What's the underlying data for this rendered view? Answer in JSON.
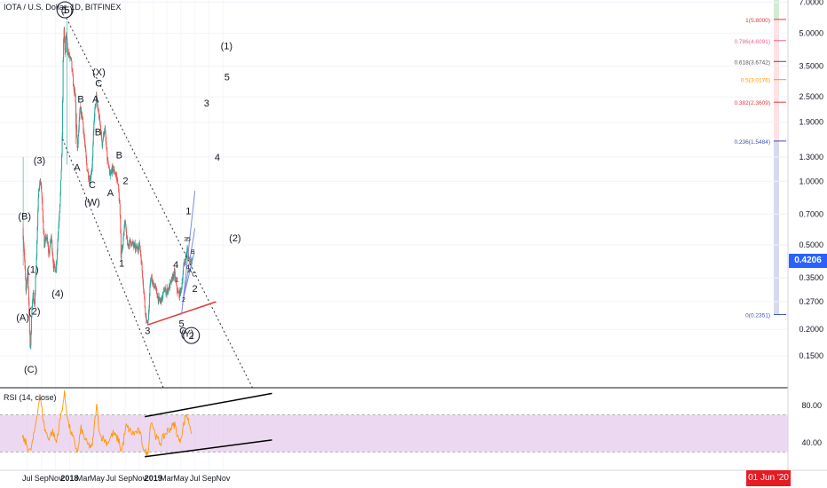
{
  "header": {
    "title": "IOTA / U.S. Dollar, 1D, BITFINEX",
    "indicator_label": "RSI (14, close)",
    "current_price": "0.4206",
    "current_date": "01 Jun '20"
  },
  "colors": {
    "up_candle": "#26a69a",
    "down_candle": "#ef5350",
    "rsi_line": "#ff9800",
    "rsi_band": "#e1bee7",
    "price_badge": "#2962ff",
    "date_badge": "#e51c23",
    "support_line": "#e53935",
    "channel_line": "#333333",
    "fork_line": "#7e8ce0"
  },
  "chart_data": [
    {
      "type": "candlestick",
      "title": "IOTA / U.S. Dollar, 1D, BITFINEX",
      "xlabel": "",
      "ylabel": "",
      "y_scale": "log",
      "ylim": [
        0.12,
        7.0
      ],
      "x_tick_labels": [
        "Jul",
        "Sep",
        "Nov",
        "2018",
        "Mar",
        "May",
        "Jul",
        "Sep",
        "Nov",
        "2019",
        "Mar",
        "May",
        "Jul",
        "Sep",
        "Nov"
      ],
      "y_tick_labels": [
        "7.0000",
        "5.0000",
        "3.5000",
        "2.5000",
        "1.9000",
        "1.3000",
        "1.0000",
        "0.7000",
        "0.5000",
        "0.3500",
        "0.2700",
        "0.2000",
        "0.1500"
      ],
      "y_tick_values": [
        7.0,
        5.0,
        3.5,
        2.5,
        1.9,
        1.3,
        1.0,
        0.7,
        0.5,
        0.35,
        0.27,
        0.2,
        0.15
      ],
      "price_path": [
        [
          "2017-06-13",
          0.6
        ],
        [
          "2017-06-20",
          0.45
        ],
        [
          "2017-06-27",
          0.3
        ],
        [
          "2017-07-05",
          0.37
        ],
        [
          "2017-07-12",
          0.22
        ],
        [
          "2017-07-16",
          0.15
        ],
        [
          "2017-07-22",
          0.25
        ],
        [
          "2017-07-28",
          0.3
        ],
        [
          "2017-08-03",
          0.25
        ],
        [
          "2017-08-12",
          0.45
        ],
        [
          "2017-08-22",
          0.95
        ],
        [
          "2017-08-31",
          1.0
        ],
        [
          "2017-09-08",
          0.7
        ],
        [
          "2017-09-15",
          0.5
        ],
        [
          "2017-09-25",
          0.55
        ],
        [
          "2017-10-05",
          0.45
        ],
        [
          "2017-10-15",
          0.55
        ],
        [
          "2017-10-25",
          0.4
        ],
        [
          "2017-11-05",
          0.38
        ],
        [
          "2017-11-15",
          0.6
        ],
        [
          "2017-11-25",
          0.9
        ],
        [
          "2017-12-02",
          1.6
        ],
        [
          "2017-12-07",
          4.5
        ],
        [
          "2017-12-10",
          5.2
        ],
        [
          "2017-12-15",
          3.8
        ],
        [
          "2017-12-19",
          5.0
        ],
        [
          "2017-12-28",
          4.0
        ],
        [
          "2018-01-10",
          3.7
        ],
        [
          "2018-01-20",
          2.8
        ],
        [
          "2018-01-28",
          2.5
        ],
        [
          "2018-02-06",
          1.4
        ],
        [
          "2018-02-18",
          2.2
        ],
        [
          "2018-02-28",
          2.0
        ],
        [
          "2018-03-10",
          1.5
        ],
        [
          "2018-03-20",
          1.15
        ],
        [
          "2018-04-01",
          1.0
        ],
        [
          "2018-04-12",
          1.2
        ],
        [
          "2018-04-20",
          2.0
        ],
        [
          "2018-04-29",
          2.5
        ],
        [
          "2018-05-06",
          2.2
        ],
        [
          "2018-05-15",
          1.9
        ],
        [
          "2018-05-25",
          1.5
        ],
        [
          "2018-06-05",
          1.8
        ],
        [
          "2018-06-15",
          1.3
        ],
        [
          "2018-06-28",
          1.05
        ],
        [
          "2018-07-08",
          1.15
        ],
        [
          "2018-07-20",
          1.1
        ],
        [
          "2018-08-01",
          1.0
        ],
        [
          "2018-08-10",
          0.75
        ],
        [
          "2018-08-15",
          0.45
        ],
        [
          "2018-08-22",
          0.5
        ],
        [
          "2018-09-01",
          0.65
        ],
        [
          "2018-09-12",
          0.5
        ],
        [
          "2018-09-25",
          0.52
        ],
        [
          "2018-10-08",
          0.5
        ],
        [
          "2018-10-20",
          0.48
        ],
        [
          "2018-11-05",
          0.5
        ],
        [
          "2018-11-18",
          0.35
        ],
        [
          "2018-11-28",
          0.25
        ],
        [
          "2018-12-07",
          0.21
        ],
        [
          "2018-12-14",
          0.24
        ],
        [
          "2018-12-22",
          0.36
        ],
        [
          "2018-12-30",
          0.33
        ],
        [
          "2019-01-10",
          0.32
        ],
        [
          "2019-01-20",
          0.29
        ],
        [
          "2019-01-30",
          0.27
        ],
        [
          "2019-02-10",
          0.28
        ],
        [
          "2019-02-20",
          0.31
        ],
        [
          "2019-03-01",
          0.3
        ],
        [
          "2019-03-15",
          0.32
        ],
        [
          "2019-03-28",
          0.35
        ],
        [
          "2019-04-05",
          0.37
        ],
        [
          "2019-04-15",
          0.31
        ],
        [
          "2019-04-25",
          0.29
        ],
        [
          "2019-05-05",
          0.31
        ],
        [
          "2019-05-15",
          0.4
        ],
        [
          "2019-05-25",
          0.44
        ],
        [
          "2019-05-31",
          0.48
        ],
        [
          "2019-06-05",
          0.44
        ],
        [
          "2019-06-10",
          0.43
        ],
        [
          "2019-06-20",
          0.42
        ]
      ],
      "annotations": [
        {
          "text": "(A)",
          "x": "2017-06-11",
          "y": 0.22
        },
        {
          "text": "(B)",
          "x": "2017-06-19",
          "y": 0.66
        },
        {
          "text": "(C)",
          "x": "2017-07-16",
          "y": 0.125
        },
        {
          "text": "(1)",
          "x": "2017-07-25",
          "y": 0.37
        },
        {
          "text": "(2)",
          "x": "2017-08-01",
          "y": 0.235
        },
        {
          "text": "(3)",
          "x": "2017-08-23",
          "y": 1.21
        },
        {
          "text": "(4)",
          "x": "2017-11-10",
          "y": 0.285
        },
        {
          "text": "(5)",
          "x": "2017-12-21",
          "y": 6.2
        },
        {
          "text": "1",
          "x": "2017-12-12",
          "y": 6.2,
          "circled": true
        },
        {
          "text": "A",
          "x": "2018-02-03",
          "y": 1.12
        },
        {
          "text": "B",
          "x": "2018-02-19",
          "y": 2.35
        },
        {
          "text": "C",
          "x": "2018-04-10",
          "y": 0.93
        },
        {
          "text": "(W)",
          "x": "2018-04-10",
          "y": 0.77
        },
        {
          "text": "A",
          "x": "2018-04-25",
          "y": 2.35
        },
        {
          "text": "B",
          "x": "2018-05-05",
          "y": 1.65
        },
        {
          "text": "C",
          "x": "2018-05-08",
          "y": 2.8
        },
        {
          "text": "(X)",
          "x": "2018-05-09",
          "y": 3.15
        },
        {
          "text": "A",
          "x": "2018-06-28",
          "y": 0.85
        },
        {
          "text": "B",
          "x": "2018-08-05",
          "y": 1.28
        },
        {
          "text": "2",
          "x": "2018-09-02",
          "y": 0.97
        },
        {
          "text": "1",
          "x": "2018-08-16",
          "y": 0.395
        },
        {
          "text": "3",
          "x": "2018-12-07",
          "y": 0.19
        },
        {
          "text": "4",
          "x": "2019-04-09",
          "y": 0.39
        },
        {
          "text": "1",
          "x": "2019-04-15",
          "y": 0.335,
          "small": true
        },
        {
          "text": "2",
          "x": "2019-05-13",
          "y": 0.27,
          "small": true
        },
        {
          "text": "3",
          "x": "2019-05-22",
          "y": 0.52,
          "small": true
        },
        {
          "text": "4",
          "x": "2019-05-31",
          "y": 0.385,
          "small": true
        },
        {
          "text": "5",
          "x": "2019-06-05",
          "y": 0.52,
          "small": true
        },
        {
          "text": "A",
          "x": "2019-06-09",
          "y": 0.37,
          "small": true
        },
        {
          "text": "B",
          "x": "2019-06-22",
          "y": 0.455,
          "small": true
        },
        {
          "text": "C",
          "x": "2019-06-28",
          "y": 0.355,
          "small": true
        },
        {
          "text": "1",
          "x": "2019-06-03",
          "y": 0.7
        },
        {
          "text": "2",
          "x": "2019-07-01",
          "y": 0.3
        },
        {
          "text": "5",
          "x": "2019-05-04",
          "y": 0.205
        },
        {
          "text": "C",
          "x": "2019-05-10",
          "y": 0.19
        },
        {
          "text": "(Y)",
          "x": "2019-05-29",
          "y": 0.185
        },
        {
          "text": "2",
          "x": "2019-06-16",
          "y": 0.18,
          "circled": true
        },
        {
          "text": "3",
          "x": "2019-08-21",
          "y": 2.25
        },
        {
          "text": "4",
          "x": "2019-10-07",
          "y": 1.25
        },
        {
          "text": "5",
          "x": "2019-11-18",
          "y": 3.0
        },
        {
          "text": "(1)",
          "x": "2019-11-16",
          "y": 4.2
        },
        {
          "text": "(2)",
          "x": "2019-12-23",
          "y": 0.52
        }
      ],
      "fibonacci": [
        {
          "label": "1(5.8000)",
          "value": 5.8
        },
        {
          "label": "0.786(4.6091)",
          "value": 4.6091
        },
        {
          "label": "0.618(3.6742)",
          "value": 3.6742
        },
        {
          "label": "0.5(3.0176)",
          "value": 3.0176
        },
        {
          "label": "0.382(2.3609)",
          "value": 2.3609
        },
        {
          "label": "0.236(1.5484)",
          "value": 1.5484
        },
        {
          "label": "0(0.2351)",
          "value": 0.2351
        }
      ],
      "trendlines": [
        {
          "name": "channel-upper",
          "from": [
            "2017-12-18",
            5.9
          ],
          "to": [
            "2020-03-10",
            0.105
          ],
          "style": "dotted"
        },
        {
          "name": "channel-lower",
          "from": [
            "2017-12-02",
            1.58
          ],
          "to": [
            "2019-02-15",
            0.105
          ],
          "style": "dotted"
        },
        {
          "name": "support",
          "from": [
            "2018-12-07",
            0.21
          ],
          "to": [
            "2019-10-01",
            0.27
          ],
          "style": "solid"
        },
        {
          "name": "fork-1",
          "from": [
            "2019-05-04",
            0.235
          ],
          "to": [
            "2019-07-01",
            0.9
          ],
          "style": "solid"
        },
        {
          "name": "fork-2",
          "from": [
            "2019-05-08",
            0.26
          ],
          "to": [
            "2019-07-01",
            0.6
          ],
          "style": "solid"
        },
        {
          "name": "fork-3",
          "from": [
            "2019-05-12",
            0.28
          ],
          "to": [
            "2019-06-28",
            0.46
          ],
          "style": "solid"
        }
      ]
    },
    {
      "type": "line",
      "title": "RSI (14, close)",
      "ylim": [
        20,
        100
      ],
      "y_tick_labels": [
        "80.00",
        "40.00"
      ],
      "band": [
        30,
        70
      ],
      "rsi_path": [
        [
          "2017-06-10",
          45
        ],
        [
          "2017-06-25",
          40
        ],
        [
          "2017-07-15",
          30
        ],
        [
          "2017-08-01",
          50
        ],
        [
          "2017-08-15",
          75
        ],
        [
          "2017-08-25",
          90
        ],
        [
          "2017-09-15",
          55
        ],
        [
          "2017-10-01",
          45
        ],
        [
          "2017-10-20",
          52
        ],
        [
          "2017-11-05",
          40
        ],
        [
          "2017-11-25",
          70
        ],
        [
          "2017-12-10",
          92
        ],
        [
          "2017-12-28",
          60
        ],
        [
          "2018-01-20",
          42
        ],
        [
          "2018-02-06",
          30
        ],
        [
          "2018-02-20",
          55
        ],
        [
          "2018-03-20",
          38
        ],
        [
          "2018-04-10",
          35
        ],
        [
          "2018-04-29",
          80
        ],
        [
          "2018-05-15",
          48
        ],
        [
          "2018-06-15",
          40
        ],
        [
          "2018-07-10",
          50
        ],
        [
          "2018-08-05",
          42
        ],
        [
          "2018-08-15",
          30
        ],
        [
          "2018-09-05",
          58
        ],
        [
          "2018-10-01",
          50
        ],
        [
          "2018-11-01",
          52
        ],
        [
          "2018-11-25",
          30
        ],
        [
          "2018-12-08",
          27
        ],
        [
          "2018-12-22",
          65
        ],
        [
          "2019-01-15",
          45
        ],
        [
          "2019-02-01",
          40
        ],
        [
          "2019-03-01",
          52
        ],
        [
          "2019-04-05",
          60
        ],
        [
          "2019-04-25",
          40
        ],
        [
          "2019-05-25",
          72
        ],
        [
          "2019-06-05",
          62
        ],
        [
          "2019-06-20",
          50
        ]
      ],
      "trendlines": [
        {
          "name": "rsi-upper",
          "from": [
            "2018-11-25",
            68
          ],
          "to": [
            "2020-06-01",
            93
          ]
        },
        {
          "name": "rsi-lower",
          "from": [
            "2018-11-25",
            25
          ],
          "to": [
            "2020-06-01",
            43
          ]
        }
      ]
    }
  ]
}
